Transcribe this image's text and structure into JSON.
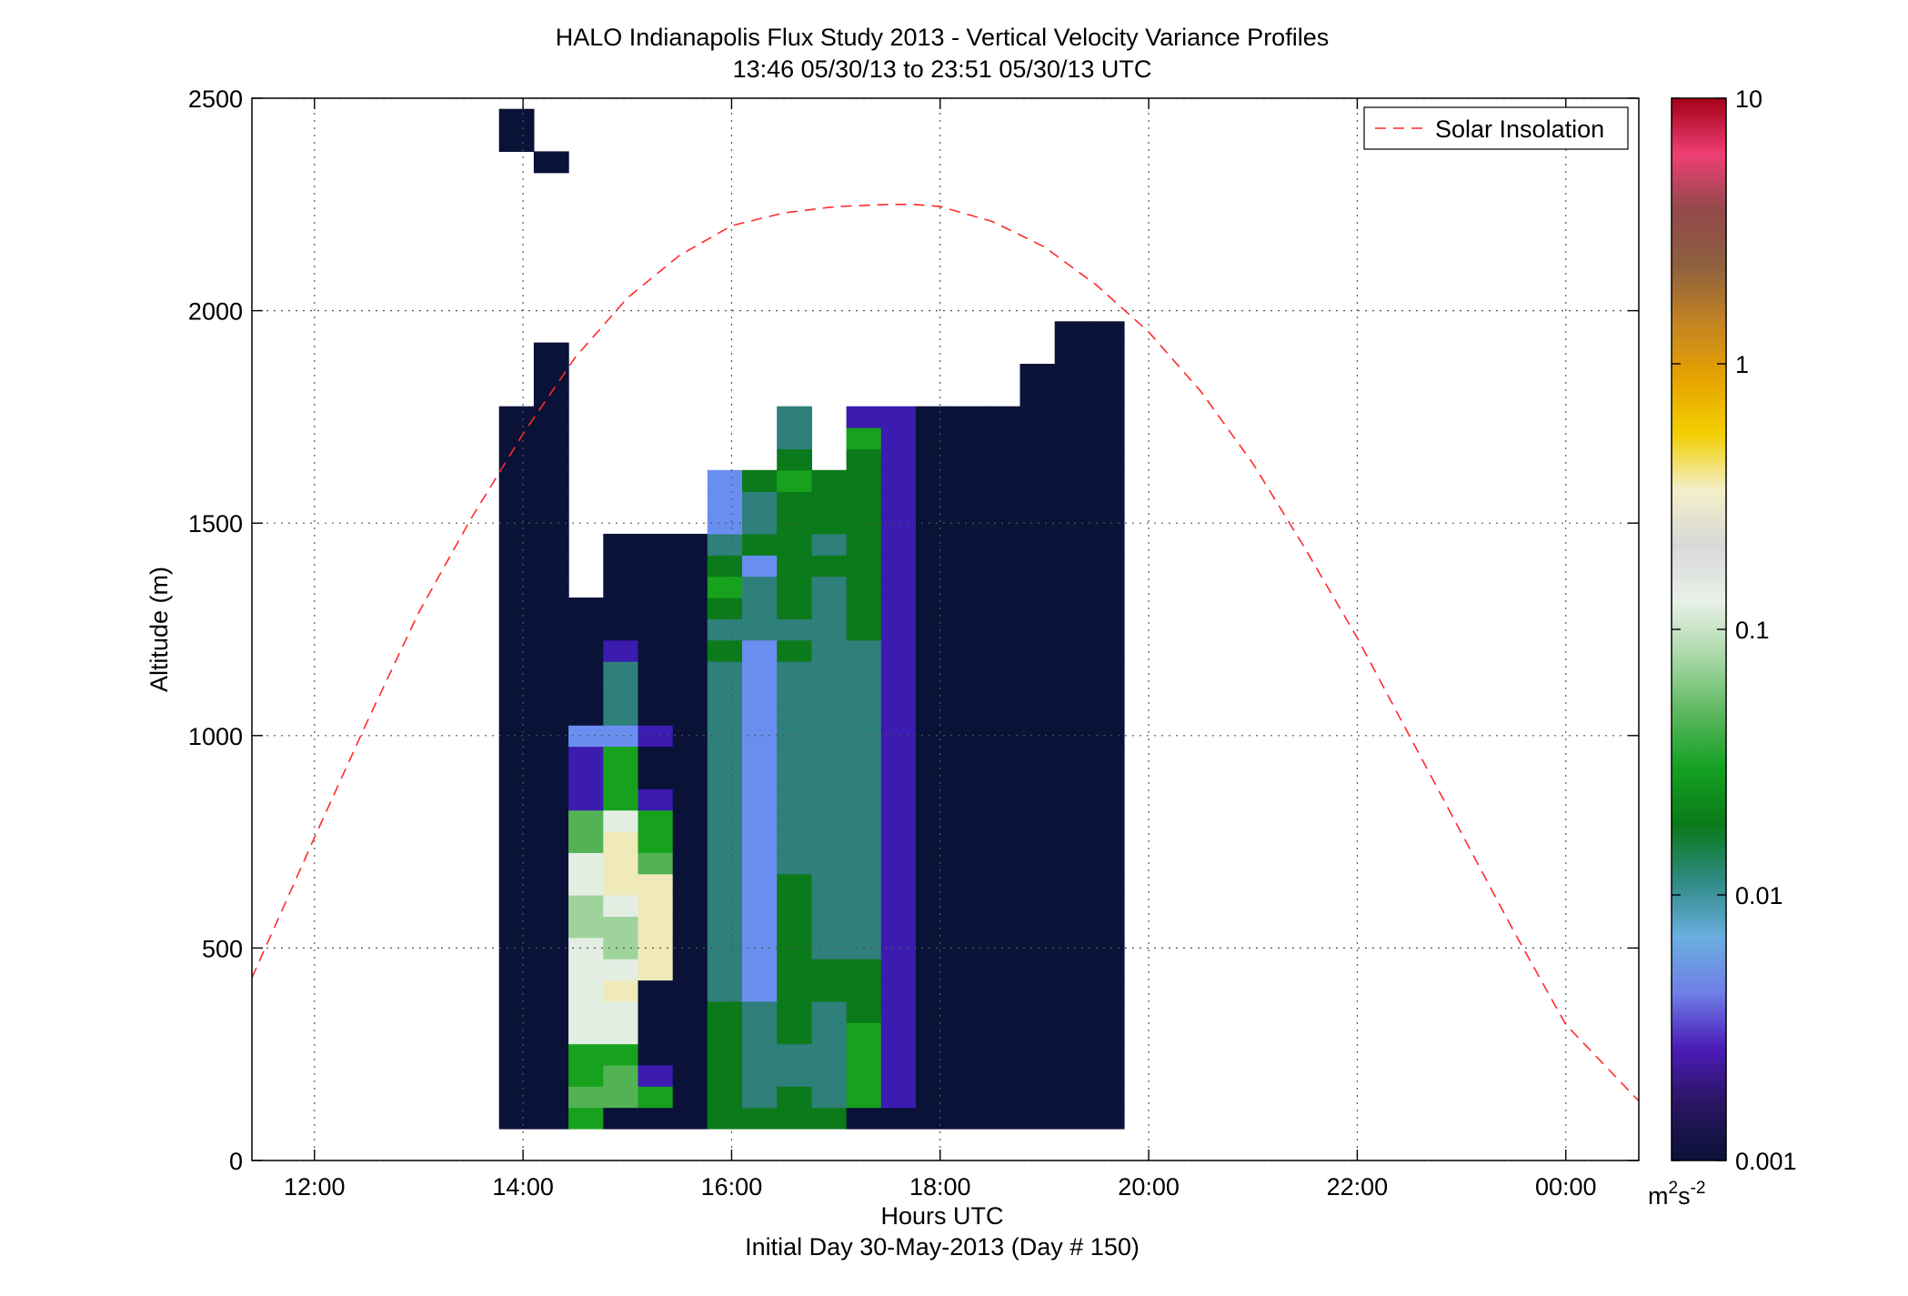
{
  "figure": {
    "title_line1": "HALO Indianapolis Flux Study 2013 - Vertical Velocity Variance Profiles",
    "title_line2": "13:46 05/30/13 to 23:51 05/30/13  UTC",
    "subtitle": "Initial Day 30-May-2013 (Day # 150)"
  },
  "chart_data": {
    "type": "heatmap",
    "xlabel": "Hours UTC",
    "ylabel": "Altitude (m)",
    "xlim": [
      11.4,
      24.7
    ],
    "ylim": [
      0,
      2500
    ],
    "x_ticks": [
      12,
      14,
      16,
      18,
      20,
      22,
      24
    ],
    "x_tick_labels": [
      "12:00",
      "14:00",
      "16:00",
      "18:00",
      "20:00",
      "22:00",
      "00:00"
    ],
    "y_ticks": [
      0,
      500,
      1000,
      1500,
      2000,
      2500
    ],
    "y_tick_labels": [
      "0",
      "500",
      "1000",
      "1500",
      "2000",
      "2500"
    ],
    "grid": true,
    "profile_start_hour": 13.77,
    "profile_interval_hours": 0.333,
    "gate_bottom_altitude_m": 75,
    "gate_height_m": 50,
    "levels_note": "",
    "palette": [
      "#0a1238",
      "#3b1bb0",
      "#6a8ef0",
      "#2f7f7a",
      "#0b7a1a",
      "#17a21d",
      "#53b354",
      "#9fd39c",
      "#e3eee3",
      "#f0e9b8",
      "#f2cf00",
      "#e7a400",
      "#c88a1e",
      "#9a6a38",
      "#8b4f45",
      "#c33a4e",
      "#f2457a",
      "#a8001a"
    ],
    "colorbar": {
      "label": "m²s⁻²",
      "label_main": "m",
      "label_sup1": "2",
      "label_mid": "s",
      "label_sup2": "-2",
      "scale": "log",
      "range": [
        0.001,
        10
      ],
      "tick_values": [
        0.001,
        0.01,
        0.1,
        1,
        10
      ],
      "tick_labels": [
        "0.001",
        "0.01",
        "0.1",
        "1",
        "10"
      ],
      "stops": [
        "#0a1238",
        "#2a1560",
        "#4b1bb6",
        "#6f7fe8",
        "#6aaee0",
        "#2f8a84",
        "#0b7a1a",
        "#13a022",
        "#5bb75e",
        "#a8d8a6",
        "#e8f0e8",
        "#d8d8d8",
        "#f3efc8",
        "#f2cf00",
        "#e6a300",
        "#c28323",
        "#8e603f",
        "#93494b",
        "#ee3f74",
        "#a50018"
      ]
    },
    "legend": {
      "position": "top-right",
      "entries": [
        {
          "name": "Solar Insolation",
          "style": "dashed",
          "color": "#ff2a2a"
        }
      ]
    },
    "solar_insolation": {
      "x": [
        11.4,
        12.0,
        12.5,
        13.0,
        13.5,
        14.0,
        14.5,
        15.0,
        15.5,
        16.0,
        16.5,
        17.0,
        17.5,
        17.75,
        18.0,
        18.5,
        19.0,
        19.5,
        20.0,
        20.5,
        21.0,
        21.5,
        22.0,
        22.5,
        23.0,
        23.5,
        24.0,
        24.7
      ],
      "y": [
        430,
        760,
        1030,
        1290,
        1510,
        1710,
        1890,
        2030,
        2130,
        2200,
        2230,
        2245,
        2250,
        2250,
        2245,
        2210,
        2150,
        2060,
        1950,
        1810,
        1640,
        1440,
        1230,
        1000,
        770,
        540,
        320,
        140
      ]
    },
    "profiles": [
      "0000000000000000000000000000000000____________000000__0_______0___0",
      "0000000000000000000000000000000000000________0____________________",
      "5655888887788661112000000_____________________________________",
      "0665889877899985552333100000____",
      "0510000999996551001000000000_____________________________0",
      "0000000000000000000000000000",
      "4444443333333333333333434543222___",
      "4333332222222222222222233324334____",
      "4433444444443333333333434444445433",
      "4333334433333333333333333343444",
      "0555544433333333333333344444444451",
      "0111111111111111111111111111111111___________",
      "0000000000000000000000000000000000_____________",
      "0000000000000000000000000000000000____________",
      "0000000000000000000000000000000000_______________",
      "000000000000000000000000000000000000",
      "00000000000000000000000000000000000000",
      "00000000000000000000000000000000000000"
    ]
  }
}
